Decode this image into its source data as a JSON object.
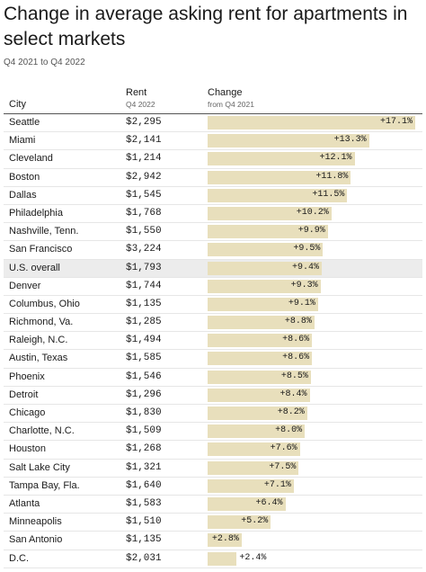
{
  "title": "Change in average asking rent for apartments in select markets",
  "subtitle": "Q4 2021 to Q4 2022",
  "headers": {
    "city": "City",
    "rent": "Rent",
    "rent_sub": "Q4 2022",
    "change": "Change",
    "change_sub": "from Q4 2021"
  },
  "colors": {
    "bar": "#e8dfbc",
    "highlight_row": "#ececec"
  },
  "chart_data": {
    "type": "bar",
    "title": "Change in average asking rent for apartments in select markets",
    "subtitle": "Q4 2021 to Q4 2022",
    "xlabel": "Change",
    "ylabel": "City",
    "categories": [
      "Seattle",
      "Miami",
      "Cleveland",
      "Boston",
      "Dallas",
      "Philadelphia",
      "Nashville, Tenn.",
      "San Francisco",
      "U.S. overall",
      "Denver",
      "Columbus, Ohio",
      "Richmond, Va.",
      "Raleigh, N.C.",
      "Austin, Texas",
      "Phoenix",
      "Detroit",
      "Chicago",
      "Charlotte, N.C.",
      "Houston",
      "Salt Lake City",
      "Tampa Bay, Fla.",
      "Atlanta",
      "Minneapolis",
      "San Antonio",
      "D.C."
    ],
    "rent": [
      "$2,295",
      "$2,141",
      "$1,214",
      "$2,942",
      "$1,545",
      "$1,768",
      "$1,550",
      "$3,224",
      "$1,793",
      "$1,744",
      "$1,135",
      "$1,285",
      "$1,494",
      "$1,585",
      "$1,546",
      "$1,296",
      "$1,830",
      "$1,509",
      "$1,268",
      "$1,321",
      "$1,640",
      "$1,583",
      "$1,510",
      "$1,135",
      "$2,031"
    ],
    "change_labels": [
      "+17.1%",
      "+13.3%",
      "+12.1%",
      "+11.8%",
      "+11.5%",
      "+10.2%",
      "+9.9%",
      "+9.5%",
      "+9.4%",
      "+9.3%",
      "+9.1%",
      "+8.8%",
      "+8.6%",
      "+8.6%",
      "+8.5%",
      "+8.4%",
      "+8.2%",
      "+8.0%",
      "+7.6%",
      "+7.5%",
      "+7.1%",
      "+6.4%",
      "+5.2%",
      "+2.8%",
      "+2.4%"
    ],
    "values": [
      17.1,
      13.3,
      12.1,
      11.8,
      11.5,
      10.2,
      9.9,
      9.5,
      9.4,
      9.3,
      9.1,
      8.8,
      8.6,
      8.6,
      8.5,
      8.4,
      8.2,
      8.0,
      7.6,
      7.5,
      7.1,
      6.4,
      5.2,
      2.8,
      2.4
    ],
    "highlight": "U.S. overall",
    "xlim": [
      0,
      17.1
    ]
  }
}
